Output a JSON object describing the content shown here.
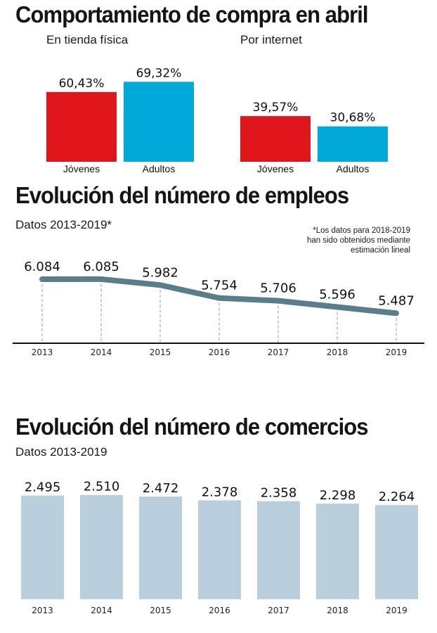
{
  "colors": {
    "jovenes": "#e0151c",
    "adultos": "#00a9d8",
    "line": "#5a7d8c",
    "bars": "#b9d0dc",
    "axis": "#111111",
    "grid": "#999999"
  },
  "sections": {
    "compra": {
      "title": "Comportamiento de compra en abril"
    },
    "empleos": {
      "title": "Evolución del número de empleos",
      "subtitle": "Datos 2013-2019*",
      "note": [
        "*Los datos para 2018-2019",
        "han sido obtenidos mediante",
        "estimación lineal"
      ]
    },
    "comercios": {
      "title": "Evolución del número de comercios",
      "subtitle": "Datos 2013-2019"
    }
  },
  "chart_data": [
    {
      "type": "bar",
      "title": "En tienda física",
      "categories": [
        "Jóvenes",
        "Adultos"
      ],
      "values": [
        60.43,
        69.32
      ],
      "labels": [
        "60,43%",
        "69,32%"
      ],
      "unit": "%",
      "ylim": [
        0,
        100
      ]
    },
    {
      "type": "bar",
      "title": "Por internet",
      "categories": [
        "Jóvenes",
        "Adultos"
      ],
      "values": [
        39.57,
        30.68
      ],
      "labels": [
        "39,57%",
        "30,68%"
      ],
      "unit": "%",
      "ylim": [
        0,
        100
      ]
    },
    {
      "type": "line",
      "title": "Evolución del número de empleos",
      "subtitle": "Datos 2013-2019*",
      "x": [
        "2013",
        "2014",
        "2015",
        "2016",
        "2017",
        "2018",
        "2019"
      ],
      "values": [
        6084,
        6085,
        5982,
        5754,
        5706,
        5596,
        5487
      ],
      "labels": [
        "6.084",
        "6.085",
        "5.982",
        "5.754",
        "5.706",
        "5.596",
        "5.487"
      ],
      "annotation": "*Los datos para 2018-2019 han sido obtenidos mediante estimación lineal",
      "grid": "vertical dashed drop lines"
    },
    {
      "type": "bar",
      "title": "Evolución del número de comercios",
      "subtitle": "Datos 2013-2019",
      "categories": [
        "2013",
        "2014",
        "2015",
        "2016",
        "2017",
        "2018",
        "2019"
      ],
      "values": [
        2495,
        2510,
        2472,
        2378,
        2358,
        2298,
        2264
      ],
      "labels": [
        "2.495",
        "2.510",
        "2.472",
        "2.378",
        "2.358",
        "2.298",
        "2.264"
      ]
    }
  ]
}
